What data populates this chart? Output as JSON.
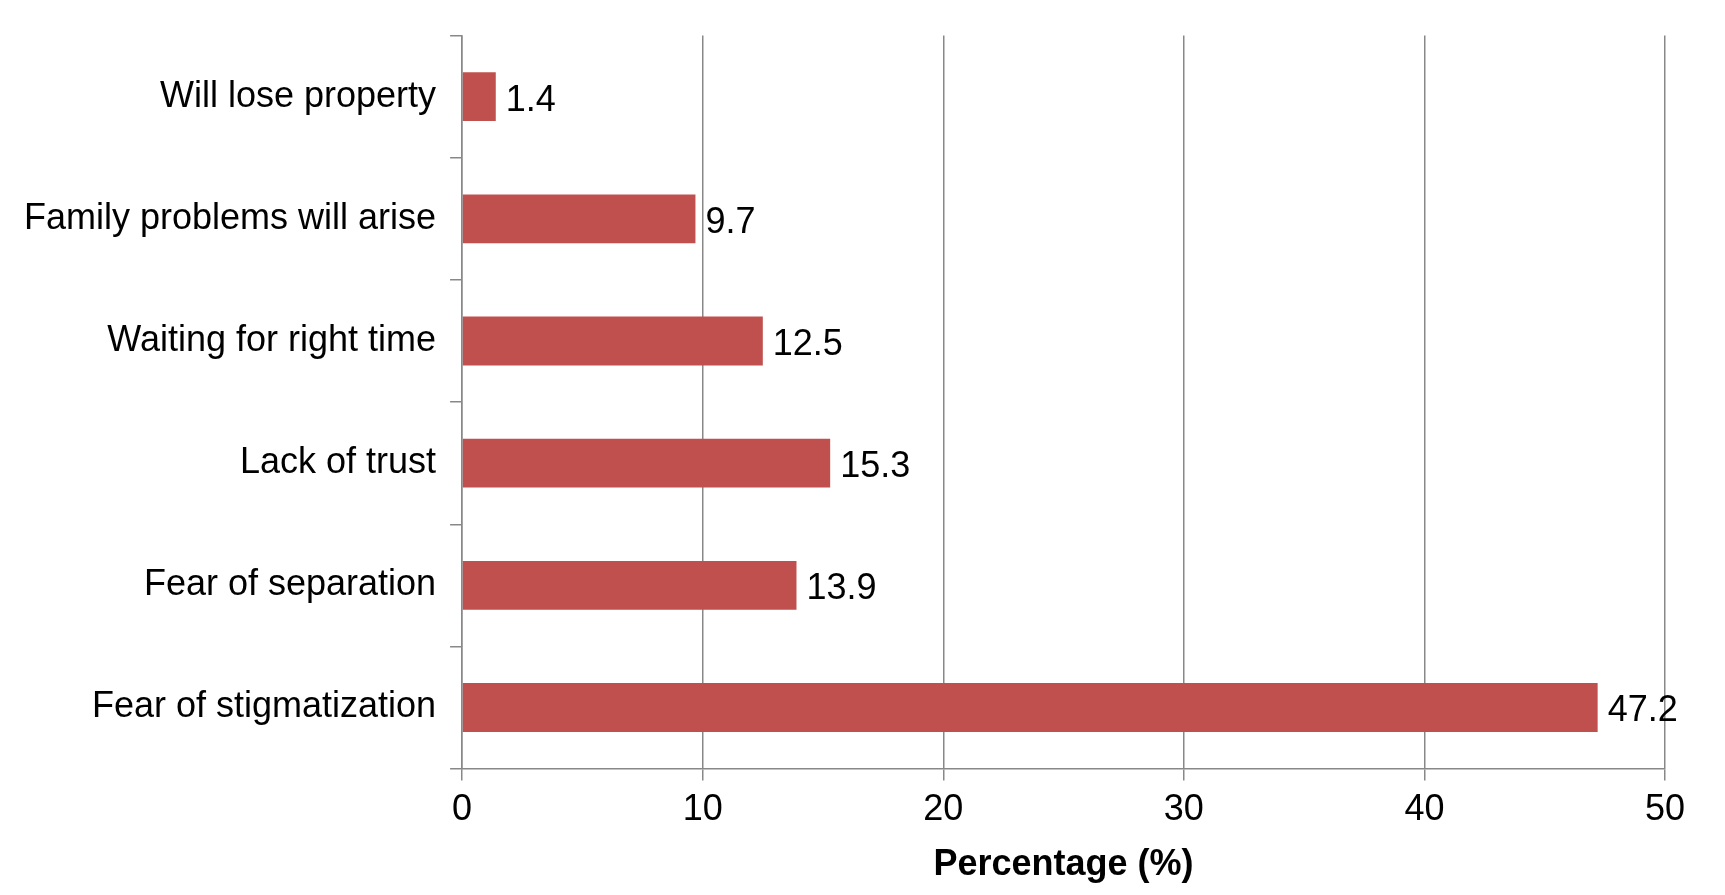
{
  "chart_data": {
    "type": "bar",
    "orientation": "horizontal",
    "xlabel": "Percentage (%)",
    "categories": [
      "Will lose property",
      "Family problems will arise",
      "Waiting for right time",
      "Lack of trust",
      "Fear of separation",
      "Fear of stigmatization"
    ],
    "values": [
      1.4,
      9.7,
      12.5,
      15.3,
      13.9,
      47.2
    ],
    "color": "#c0504d",
    "xlim": [
      0,
      50
    ],
    "xticks": [
      0,
      10,
      20,
      30,
      40,
      50
    ],
    "grid": "x",
    "data_labels": true
  }
}
